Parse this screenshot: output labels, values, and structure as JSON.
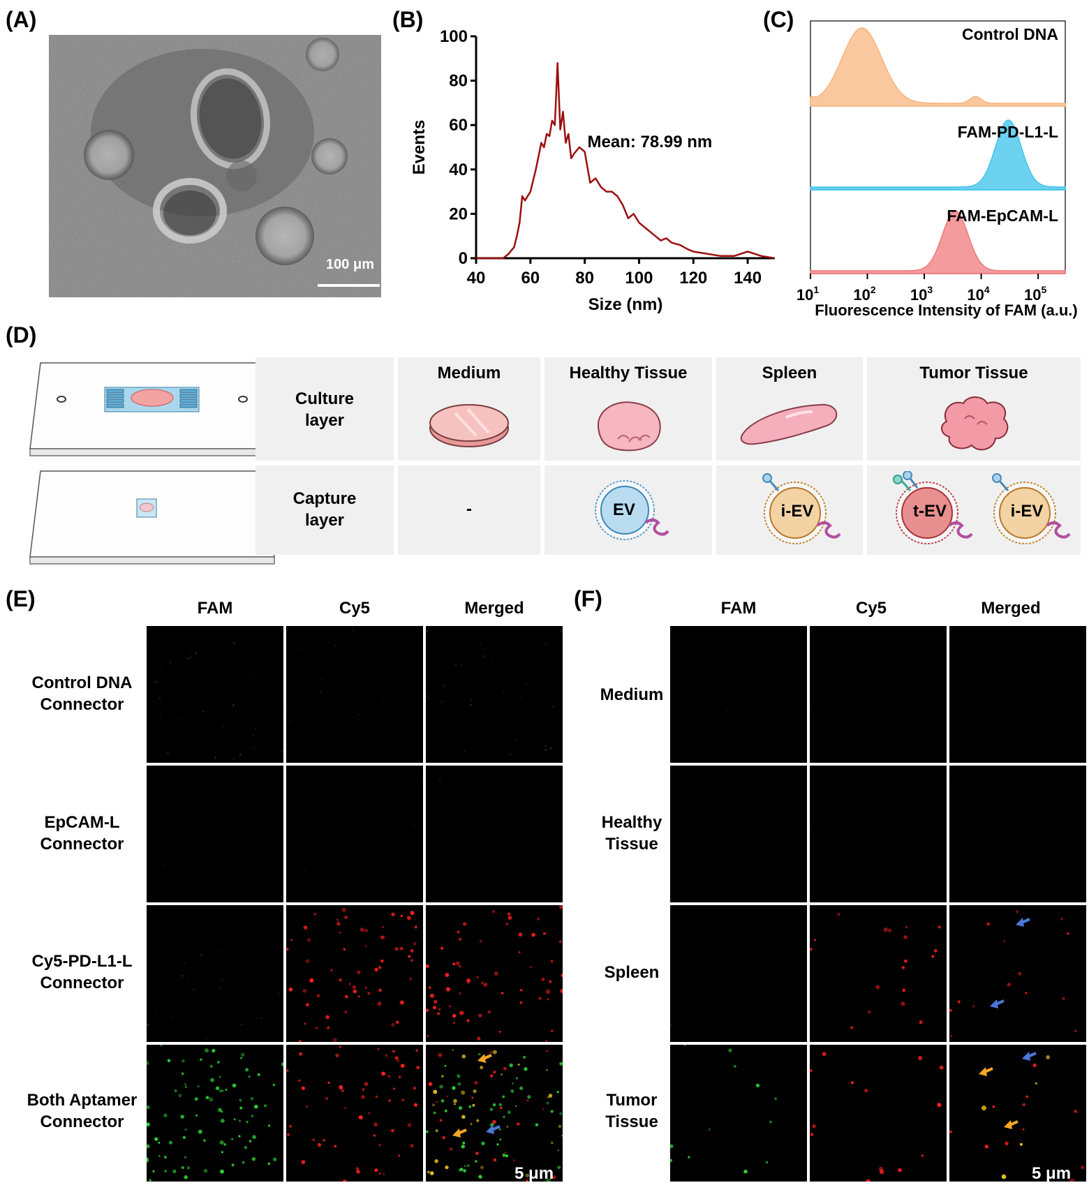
{
  "panels": {
    "A": {
      "label": "(A)",
      "scale_bar": "100 μm"
    },
    "B": {
      "label": "(B)"
    },
    "C": {
      "label": "(C)"
    },
    "D": {
      "label": "(D)"
    },
    "E": {
      "label": "(E)"
    },
    "F": {
      "label": "(F)"
    }
  },
  "chart_data": [
    {
      "type": "line",
      "panel": "B",
      "xlabel": "Size (nm)",
      "ylabel": "Events",
      "xlim": [
        40,
        150
      ],
      "ylim": [
        0,
        100
      ],
      "xticks": [
        "40",
        "60",
        "80",
        "100",
        "120",
        "140"
      ],
      "yticks": [
        "0",
        "20",
        "40",
        "60",
        "80",
        "100"
      ],
      "annotation": "Mean: 78.99 nm",
      "color": "#9b0f0f",
      "series": [
        {
          "x": [
            40,
            45,
            50,
            52,
            54,
            55,
            56,
            57,
            58,
            60,
            62,
            63,
            64,
            65,
            66,
            67,
            68,
            69,
            70,
            71,
            72,
            73,
            74,
            75,
            76,
            78,
            80,
            82,
            84,
            86,
            88,
            90,
            92,
            94,
            96,
            98,
            100,
            102,
            104,
            106,
            108,
            110,
            112,
            115,
            118,
            120,
            125,
            130,
            135,
            140,
            145,
            150
          ],
          "y": [
            0,
            0,
            0,
            2,
            5,
            10,
            16,
            28,
            26,
            30,
            40,
            46,
            52,
            50,
            56,
            55,
            62,
            60,
            88,
            58,
            66,
            52,
            56,
            45,
            47,
            50,
            48,
            34,
            36,
            32,
            30,
            30,
            28,
            24,
            18,
            20,
            16,
            14,
            12,
            10,
            8,
            9,
            7,
            6,
            4,
            3,
            2,
            1,
            1,
            3,
            1,
            0
          ]
        }
      ]
    },
    {
      "type": "area",
      "panel": "C",
      "xlabel": "Fluorescence Intensity of FAM (a.u.)",
      "xscale": "log",
      "xlim": [
        10,
        300000
      ],
      "xticks": [
        {
          "base": "10",
          "exp": "1"
        },
        {
          "base": "10",
          "exp": "2"
        },
        {
          "base": "10",
          "exp": "3"
        },
        {
          "base": "10",
          "exp": "4"
        },
        {
          "base": "10",
          "exp": "5"
        }
      ],
      "series": [
        {
          "name": "Control DNA",
          "color": "#f7b57d",
          "peak": 80
        },
        {
          "name": "FAM-PD-L1-L",
          "color": "#3cc3ea",
          "peak": 30000
        },
        {
          "name": "FAM-EpCAM-L",
          "color": "#f0797c",
          "peak": 3500
        }
      ]
    }
  ],
  "schematic": {
    "row_headers": [
      [
        "Culture",
        "layer"
      ],
      [
        "Capture",
        "layer"
      ]
    ],
    "col_headers": [
      "Medium",
      "Healthy Tissue",
      "Spleen",
      "Tumor Tissue"
    ],
    "capture_cells": [
      "-",
      "EV",
      "i-EV",
      "t-EV",
      "i-EV"
    ]
  },
  "microscopy_E": {
    "columns": [
      "FAM",
      "Cy5",
      "Merged"
    ],
    "rows": [
      [
        "Control DNA",
        "Connector"
      ],
      [
        "EpCAM-L",
        "Connector"
      ],
      [
        "Cy5-PD-L1-L",
        "Connector"
      ],
      [
        "Both Aptamer",
        "Connector"
      ]
    ],
    "scale_bar": "5 μm"
  },
  "microscopy_F": {
    "columns": [
      "FAM",
      "Cy5",
      "Merged"
    ],
    "rows": [
      [
        "Medium"
      ],
      [
        "Healthy",
        "Tissue"
      ],
      [
        "Spleen"
      ],
      [
        "Tumor",
        "Tissue"
      ]
    ],
    "scale_bar": "5 μm"
  }
}
